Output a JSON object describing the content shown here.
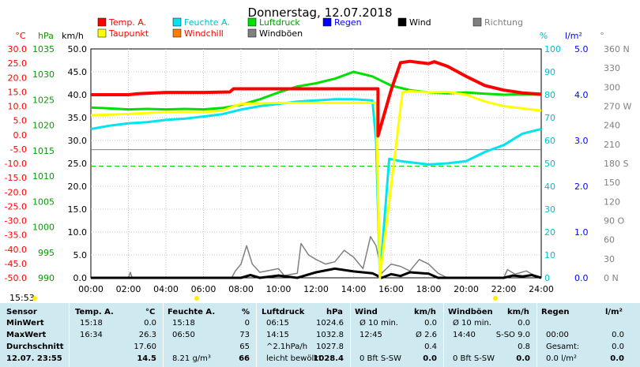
{
  "chart_data": {
    "type": "line",
    "title": "Donnerstag, 12.07.2018",
    "x_ticks": [
      "00:00",
      "02:00",
      "04:00",
      "06:00",
      "08:00",
      "10:00",
      "12:00",
      "14:00",
      "16:00",
      "18:00",
      "20:00",
      "22:00",
      "24:00"
    ],
    "axes": {
      "temp": {
        "label": "°C",
        "range": [
          -50,
          30
        ],
        "ticks": [
          "30.0",
          "25.0",
          "20.0",
          "15.0",
          "10.0",
          "5.0",
          "0.0",
          "-5.0",
          "-10.0",
          "-15.0",
          "-20.0",
          "-25.0",
          "-30.0",
          "-35.0",
          "-40.0",
          "-45.0",
          "-50.0"
        ]
      },
      "pressure": {
        "label": "hPa",
        "range": [
          990,
          1039
        ],
        "ticks": [
          "1035",
          "1030",
          "1025",
          "1020",
          "1015",
          "1010",
          "1005",
          "1000",
          "995",
          "990"
        ]
      },
      "wind": {
        "label": "km/h",
        "range": [
          0,
          50
        ],
        "ticks": [
          "50.0",
          "45.0",
          "40.0",
          "35.0",
          "30.0",
          "25.0",
          "20.0",
          "15.0",
          "10.0",
          "5.0",
          "0.0"
        ]
      },
      "humidity": {
        "label": "%",
        "range": [
          0,
          100
        ],
        "ticks": [
          "100",
          "90",
          "80",
          "70",
          "60",
          "50",
          "40",
          "30",
          "20",
          "10",
          "0"
        ]
      },
      "rain": {
        "label": "l/m²",
        "range": [
          0,
          5
        ],
        "ticks": [
          "5.0",
          "4.0",
          "3.0",
          "2.0",
          "1.0",
          "0.0"
        ]
      },
      "direction": {
        "label": "°",
        "range": [
          0,
          360
        ],
        "ticks": [
          "360 N",
          "330",
          "300",
          "270 W",
          "240",
          "210",
          "180 S",
          "150",
          "120",
          "90 O",
          "60",
          "30",
          "0 N"
        ]
      }
    },
    "legend": [
      {
        "name": "Temp. A.",
        "color": "#ff0000",
        "label_color": "#ff0000"
      },
      {
        "name": "Feuchte A.",
        "color": "#00e5ee",
        "label_color": "#00bfcf"
      },
      {
        "name": "Luftdruck",
        "color": "#00e000",
        "label_color": "#00a000"
      },
      {
        "name": "Regen",
        "color": "#0000ff",
        "label_color": "#0000ff"
      },
      {
        "name": "Wind",
        "color": "#000000",
        "label_color": "#000000"
      },
      {
        "name": "Richtung",
        "color": "#808080",
        "label_color": "#808080"
      },
      {
        "name": "Taupunkt",
        "color": "#ffff00",
        "label_color": "#ff0000"
      },
      {
        "name": "Windchill",
        "color": "#ff8000",
        "label_color": "#ff0000"
      },
      {
        "name": "Windböen",
        "color": "#808080",
        "label_color": "#000000"
      }
    ],
    "series": [
      {
        "name": "Temp. A.",
        "axis": "wind",
        "color": "#ff0000",
        "points": [
          [
            0,
            40
          ],
          [
            2,
            40
          ],
          [
            2.5,
            40.2
          ],
          [
            4,
            40.5
          ],
          [
            6,
            40.5
          ],
          [
            7.4,
            40.6
          ],
          [
            7.6,
            41.3
          ],
          [
            10,
            41.3
          ],
          [
            12,
            41.3
          ],
          [
            14,
            41.3
          ],
          [
            15.3,
            41.3
          ],
          [
            15.3,
            31
          ],
          [
            16,
            41
          ],
          [
            16.5,
            47
          ],
          [
            17,
            47.3
          ],
          [
            18,
            46.8
          ],
          [
            18.3,
            47.2
          ],
          [
            19,
            46.2
          ],
          [
            20,
            44
          ],
          [
            21,
            42
          ],
          [
            22,
            41
          ],
          [
            23,
            40.4
          ],
          [
            24,
            40.1
          ]
        ]
      },
      {
        "name": "Taupunkt",
        "axis": "wind",
        "color": "#ffff00",
        "points": [
          [
            0,
            35.5
          ],
          [
            2,
            35.8
          ],
          [
            4,
            36.2
          ],
          [
            6,
            36.2
          ],
          [
            7,
            36.5
          ],
          [
            7.5,
            37.3
          ],
          [
            8,
            38
          ],
          [
            10,
            38.2
          ],
          [
            12,
            38.2
          ],
          [
            14,
            38.2
          ],
          [
            15.2,
            38.2
          ],
          [
            15.4,
            0
          ],
          [
            16,
            20
          ],
          [
            16.6,
            40.5
          ],
          [
            17,
            40.8
          ],
          [
            18,
            40.5
          ],
          [
            19,
            40.6
          ],
          [
            20,
            40
          ],
          [
            21,
            38.5
          ],
          [
            22,
            37.5
          ],
          [
            23,
            37
          ],
          [
            24,
            36.5
          ]
        ]
      },
      {
        "name": "Luftdruck",
        "axis": "wind",
        "color": "#00e000",
        "points": [
          [
            0,
            37.2
          ],
          [
            1,
            37
          ],
          [
            2,
            36.8
          ],
          [
            3,
            36.9
          ],
          [
            4,
            36.8
          ],
          [
            5,
            36.9
          ],
          [
            6,
            36.8
          ],
          [
            7,
            37.1
          ],
          [
            8,
            37.8
          ],
          [
            9,
            39
          ],
          [
            10,
            40.5
          ],
          [
            11,
            41.8
          ],
          [
            12,
            42.5
          ],
          [
            13,
            43.5
          ],
          [
            14,
            45
          ],
          [
            15,
            44
          ],
          [
            16,
            42
          ],
          [
            17,
            41
          ],
          [
            18,
            40.5
          ],
          [
            19,
            40.3
          ],
          [
            20,
            40.5
          ],
          [
            21,
            40.2
          ],
          [
            22,
            40
          ],
          [
            23,
            40.1
          ],
          [
            24,
            40
          ]
        ]
      },
      {
        "name": "Feuchte A.",
        "axis": "humidity",
        "color": "#00e5ee",
        "points": [
          [
            0,
            65
          ],
          [
            1,
            66.5
          ],
          [
            2,
            67.5
          ],
          [
            3,
            68
          ],
          [
            4,
            69
          ],
          [
            5,
            69.5
          ],
          [
            6,
            70.5
          ],
          [
            7,
            71.5
          ],
          [
            8,
            73.5
          ],
          [
            9,
            75
          ],
          [
            10,
            76
          ],
          [
            11,
            77
          ],
          [
            12,
            77.5
          ],
          [
            13,
            78
          ],
          [
            14,
            78
          ],
          [
            15,
            77.5
          ],
          [
            15.2,
            60
          ],
          [
            15.4,
            0
          ],
          [
            15.9,
            52
          ],
          [
            16.5,
            51
          ],
          [
            17,
            50.5
          ],
          [
            18,
            49.5
          ],
          [
            19,
            50
          ],
          [
            20,
            51
          ],
          [
            21,
            55
          ],
          [
            22,
            58
          ],
          [
            23,
            63
          ],
          [
            24,
            65
          ]
        ]
      },
      {
        "name": "Wind",
        "axis": "wind",
        "color": "#000000",
        "points": [
          [
            0,
            0
          ],
          [
            8,
            0
          ],
          [
            8.5,
            0.6
          ],
          [
            9,
            0
          ],
          [
            10,
            0.5
          ],
          [
            11,
            0
          ],
          [
            12,
            1.2
          ],
          [
            13,
            2
          ],
          [
            14,
            1.4
          ],
          [
            15,
            1
          ],
          [
            15.5,
            0
          ],
          [
            16,
            0.8
          ],
          [
            16.5,
            0.4
          ],
          [
            17,
            1.2
          ],
          [
            18,
            0.9
          ],
          [
            18.5,
            0
          ],
          [
            22,
            0
          ],
          [
            22.5,
            0.5
          ],
          [
            23,
            0.3
          ],
          [
            23.5,
            0.6
          ],
          [
            24,
            0
          ]
        ]
      },
      {
        "name": "Windböen",
        "axis": "wind",
        "color": "#808080",
        "points": [
          [
            0,
            0
          ],
          [
            2,
            0
          ],
          [
            2.1,
            1.2
          ],
          [
            2.2,
            0
          ],
          [
            7.5,
            0
          ],
          [
            7.7,
            1.5
          ],
          [
            8,
            3
          ],
          [
            8.3,
            7
          ],
          [
            8.6,
            3
          ],
          [
            9,
            1.2
          ],
          [
            10,
            2
          ],
          [
            10.3,
            0.5
          ],
          [
            11,
            1
          ],
          [
            11.2,
            7.5
          ],
          [
            11.6,
            5
          ],
          [
            12,
            4
          ],
          [
            12.5,
            3
          ],
          [
            13,
            3.5
          ],
          [
            13.5,
            6
          ],
          [
            14,
            4.5
          ],
          [
            14.5,
            2
          ],
          [
            14.9,
            9
          ],
          [
            15.2,
            7
          ],
          [
            15.5,
            1
          ],
          [
            16,
            3
          ],
          [
            16.5,
            2.5
          ],
          [
            17,
            1.5
          ],
          [
            17.5,
            4
          ],
          [
            18,
            3
          ],
          [
            18.5,
            1
          ],
          [
            19,
            0
          ],
          [
            22,
            0
          ],
          [
            22.2,
            1.8
          ],
          [
            22.6,
            0.8
          ],
          [
            23.2,
            1.5
          ],
          [
            23.6,
            0.6
          ],
          [
            24,
            0
          ]
        ]
      }
    ],
    "reference_lines": [
      {
        "axis": "wind",
        "value": 28,
        "color": "#808080",
        "style": "solid"
      },
      {
        "axis": "wind",
        "value": 24.4,
        "color": "#00cc00",
        "style": "dashed"
      }
    ],
    "time_marker": "15:53"
  },
  "table": {
    "headers": [
      {
        "label": "Sensor"
      },
      {
        "label": "Temp. A.",
        "unit": "°C"
      },
      {
        "label": "Feuchte A.",
        "unit": "%"
      },
      {
        "label": "Luftdruck",
        "unit": "hPa"
      },
      {
        "label": "Wind",
        "unit": "km/h"
      },
      {
        "label": "Windböen",
        "unit": "km/h"
      },
      {
        "label": "Regen",
        "unit": "l/m²"
      }
    ],
    "rows": [
      {
        "label": "MinWert",
        "cells": [
          [
            "15:18",
            "0.0"
          ],
          [
            "15:18",
            "0"
          ],
          [
            "06:15",
            "1024.6"
          ],
          [
            "Ø 10 min.",
            "0.0"
          ],
          [
            "Ø 10 min.",
            "0.0"
          ],
          [
            "",
            ""
          ]
        ]
      },
      {
        "label": "MaxWert",
        "cells": [
          [
            "16:34",
            "26.3"
          ],
          [
            "06:50",
            "73"
          ],
          [
            "14:15",
            "1032.8"
          ],
          [
            "12:45",
            "Ø 2.6"
          ],
          [
            "14:40",
            "S-SO 9.0"
          ],
          [
            "00:00",
            "0.0"
          ]
        ]
      },
      {
        "label": "Durchschnitt",
        "cells": [
          [
            "",
            "17.60"
          ],
          [
            "",
            "65"
          ],
          [
            "^2.1hPa/h",
            "1027.8"
          ],
          [
            "",
            "0.4"
          ],
          [
            "",
            "0.8"
          ],
          [
            "Gesamt:",
            "0.0"
          ]
        ]
      },
      {
        "label": "12.07. 23:55",
        "cells": [
          [
            "",
            "14.5"
          ],
          [
            "8.21 g/m³",
            "66"
          ],
          [
            "leicht bewölkt",
            "1028.4"
          ],
          [
            "0 Bft S-SW",
            "0.0"
          ],
          [
            "0 Bft S-SW",
            "0.0"
          ],
          [
            "0.0 l/m²",
            "0.0"
          ]
        ]
      }
    ]
  }
}
